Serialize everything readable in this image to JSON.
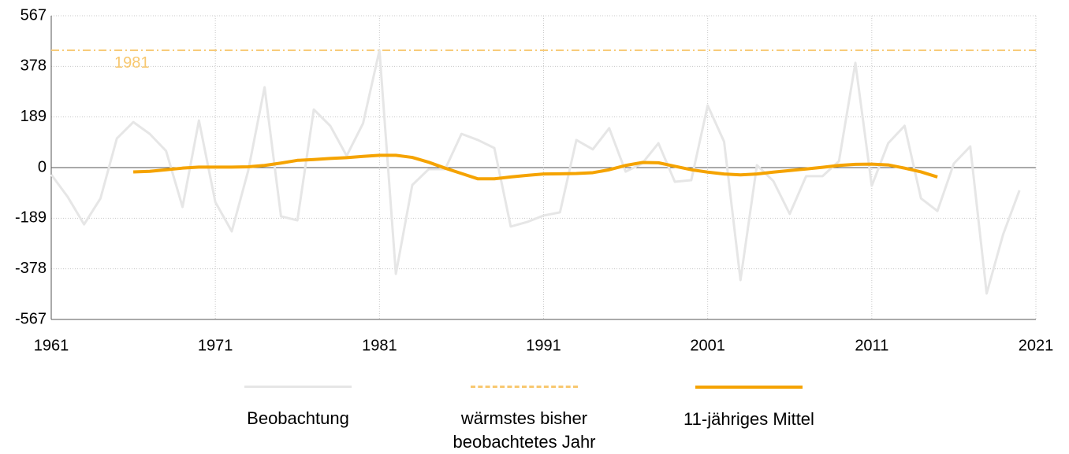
{
  "chart_data": {
    "type": "line",
    "xlim": [
      1961,
      2021
    ],
    "xticks": [
      1961,
      1971,
      1981,
      1991,
      2001,
      2011,
      2021
    ],
    "ylim": [
      -567,
      567
    ],
    "yticks": [
      -567,
      -378,
      -189,
      0,
      189,
      378,
      567
    ],
    "grid": true,
    "series": [
      {
        "name": "Beobachtung",
        "color": "#e6e6e6",
        "x": [
          1961,
          1962,
          1963,
          1964,
          1965,
          1966,
          1967,
          1968,
          1969,
          1970,
          1971,
          1972,
          1973,
          1974,
          1975,
          1976,
          1977,
          1978,
          1979,
          1980,
          1981,
          1982,
          1983,
          1984,
          1985,
          1986,
          1987,
          1988,
          1989,
          1990,
          1991,
          1992,
          1993,
          1994,
          1995,
          1996,
          1997,
          1998,
          1999,
          2000,
          2001,
          2002,
          2003,
          2004,
          2005,
          2006,
          2007,
          2008,
          2009,
          2010,
          2011,
          2012,
          2013,
          2014,
          2015,
          2016,
          2017,
          2018,
          2019,
          2020
        ],
        "values": [
          -26,
          -109,
          -212,
          -115,
          109,
          170,
          126,
          62,
          -147,
          176,
          -129,
          -238,
          -12,
          300,
          -182,
          -197,
          217,
          156,
          44,
          165,
          438,
          -397,
          -65,
          -6,
          -6,
          126,
          103,
          73,
          -220,
          -203,
          -179,
          -167,
          103,
          68,
          147,
          -15,
          15,
          91,
          -53,
          -47,
          232,
          97,
          -420,
          9,
          -50,
          -173,
          -32,
          -32,
          24,
          391,
          -68,
          91,
          156,
          -115,
          -162,
          15,
          79,
          -470,
          -250,
          -85
        ]
      },
      {
        "name": "11-jähriges Mittel",
        "color": "#f5a300",
        "x": [
          1966,
          1967,
          1968,
          1969,
          1970,
          1971,
          1972,
          1973,
          1974,
          1975,
          1976,
          1977,
          1978,
          1979,
          1980,
          1981,
          1982,
          1983,
          1984,
          1985,
          1986,
          1987,
          1988,
          1989,
          1990,
          1991,
          1992,
          1993,
          1994,
          1995,
          1996,
          1997,
          1998,
          1999,
          2000,
          2001,
          2002,
          2003,
          2004,
          2005,
          2006,
          2007,
          2008,
          2009,
          2010,
          2011,
          2012,
          2013,
          2014,
          2015
        ],
        "values": [
          -16,
          -14,
          -8,
          -2,
          2,
          2,
          2,
          3,
          8,
          17,
          27,
          30,
          34,
          37,
          42,
          46,
          46,
          38,
          20,
          -2,
          -22,
          -42,
          -42,
          -35,
          -29,
          -24,
          -23,
          -22,
          -19,
          -8,
          8,
          19,
          18,
          5,
          -8,
          -17,
          -24,
          -27,
          -24,
          -17,
          -11,
          -5,
          1,
          8,
          12,
          13,
          10,
          -2,
          -16,
          -35
        ]
      }
    ],
    "reference_line": {
      "name": "wärmstes bisher beobachtetes Jahr",
      "value": 438,
      "label": "1981",
      "color": "#f8c870"
    }
  }
}
